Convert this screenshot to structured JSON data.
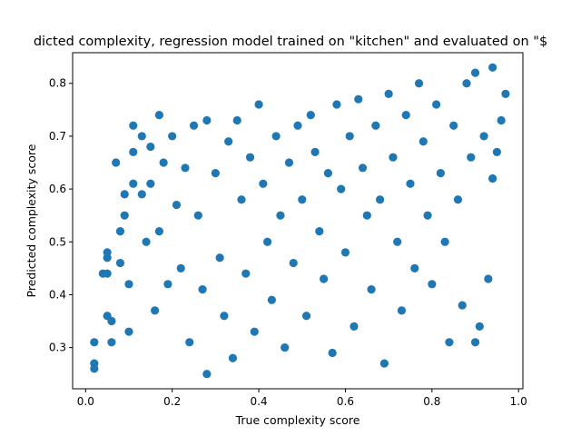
{
  "chart_data": {
    "type": "scatter",
    "title": "dicted complexity, regression model trained on \"kitchen\" and evaluated on \"$",
    "xlabel": "True complexity score",
    "ylabel": "Predicted complexity score",
    "xlim": [
      -0.03,
      1.01
    ],
    "ylim": [
      0.222,
      0.858
    ],
    "xticks": [
      0.0,
      0.2,
      0.4,
      0.6,
      0.8,
      1.0
    ],
    "xtick_labels": [
      "0.0",
      "0.2",
      "0.4",
      "0.6",
      "0.8",
      "1.0"
    ],
    "yticks": [
      0.3,
      0.4,
      0.5,
      0.6,
      0.7,
      0.8
    ],
    "ytick_labels": [
      "0.3",
      "0.4",
      "0.5",
      "0.6",
      "0.7",
      "0.8"
    ],
    "grid": false,
    "marker_color": "#1f77b4",
    "points": [
      [
        0.02,
        0.31
      ],
      [
        0.02,
        0.27
      ],
      [
        0.02,
        0.26
      ],
      [
        0.04,
        0.44
      ],
      [
        0.05,
        0.48
      ],
      [
        0.05,
        0.47
      ],
      [
        0.05,
        0.44
      ],
      [
        0.05,
        0.36
      ],
      [
        0.06,
        0.35
      ],
      [
        0.06,
        0.31
      ],
      [
        0.07,
        0.65
      ],
      [
        0.08,
        0.52
      ],
      [
        0.08,
        0.46
      ],
      [
        0.09,
        0.59
      ],
      [
        0.09,
        0.55
      ],
      [
        0.1,
        0.42
      ],
      [
        0.1,
        0.33
      ],
      [
        0.11,
        0.72
      ],
      [
        0.11,
        0.67
      ],
      [
        0.11,
        0.61
      ],
      [
        0.13,
        0.7
      ],
      [
        0.13,
        0.59
      ],
      [
        0.14,
        0.5
      ],
      [
        0.15,
        0.68
      ],
      [
        0.15,
        0.61
      ],
      [
        0.16,
        0.37
      ],
      [
        0.17,
        0.74
      ],
      [
        0.17,
        0.52
      ],
      [
        0.18,
        0.65
      ],
      [
        0.19,
        0.42
      ],
      [
        0.2,
        0.7
      ],
      [
        0.21,
        0.57
      ],
      [
        0.22,
        0.45
      ],
      [
        0.23,
        0.64
      ],
      [
        0.24,
        0.31
      ],
      [
        0.25,
        0.72
      ],
      [
        0.26,
        0.55
      ],
      [
        0.27,
        0.41
      ],
      [
        0.28,
        0.73
      ],
      [
        0.28,
        0.25
      ],
      [
        0.3,
        0.63
      ],
      [
        0.31,
        0.47
      ],
      [
        0.32,
        0.36
      ],
      [
        0.33,
        0.69
      ],
      [
        0.34,
        0.28
      ],
      [
        0.35,
        0.73
      ],
      [
        0.36,
        0.58
      ],
      [
        0.37,
        0.44
      ],
      [
        0.38,
        0.66
      ],
      [
        0.39,
        0.33
      ],
      [
        0.4,
        0.76
      ],
      [
        0.41,
        0.61
      ],
      [
        0.42,
        0.5
      ],
      [
        0.43,
        0.39
      ],
      [
        0.44,
        0.7
      ],
      [
        0.45,
        0.55
      ],
      [
        0.46,
        0.3
      ],
      [
        0.47,
        0.65
      ],
      [
        0.48,
        0.46
      ],
      [
        0.49,
        0.72
      ],
      [
        0.5,
        0.58
      ],
      [
        0.51,
        0.36
      ],
      [
        0.52,
        0.74
      ],
      [
        0.53,
        0.67
      ],
      [
        0.54,
        0.52
      ],
      [
        0.55,
        0.43
      ],
      [
        0.56,
        0.63
      ],
      [
        0.57,
        0.29
      ],
      [
        0.58,
        0.76
      ],
      [
        0.59,
        0.6
      ],
      [
        0.6,
        0.48
      ],
      [
        0.61,
        0.7
      ],
      [
        0.62,
        0.34
      ],
      [
        0.63,
        0.77
      ],
      [
        0.64,
        0.64
      ],
      [
        0.65,
        0.55
      ],
      [
        0.66,
        0.41
      ],
      [
        0.67,
        0.72
      ],
      [
        0.68,
        0.58
      ],
      [
        0.69,
        0.27
      ],
      [
        0.7,
        0.78
      ],
      [
        0.71,
        0.66
      ],
      [
        0.72,
        0.5
      ],
      [
        0.73,
        0.37
      ],
      [
        0.74,
        0.74
      ],
      [
        0.75,
        0.61
      ],
      [
        0.76,
        0.45
      ],
      [
        0.77,
        0.8
      ],
      [
        0.78,
        0.69
      ],
      [
        0.79,
        0.55
      ],
      [
        0.8,
        0.42
      ],
      [
        0.81,
        0.76
      ],
      [
        0.82,
        0.63
      ],
      [
        0.83,
        0.5
      ],
      [
        0.84,
        0.31
      ],
      [
        0.85,
        0.72
      ],
      [
        0.86,
        0.58
      ],
      [
        0.87,
        0.38
      ],
      [
        0.88,
        0.8
      ],
      [
        0.89,
        0.66
      ],
      [
        0.9,
        0.82
      ],
      [
        0.9,
        0.31
      ],
      [
        0.91,
        0.34
      ],
      [
        0.92,
        0.7
      ],
      [
        0.93,
        0.43
      ],
      [
        0.94,
        0.83
      ],
      [
        0.94,
        0.62
      ],
      [
        0.95,
        0.67
      ],
      [
        0.96,
        0.73
      ],
      [
        0.97,
        0.78
      ]
    ]
  }
}
